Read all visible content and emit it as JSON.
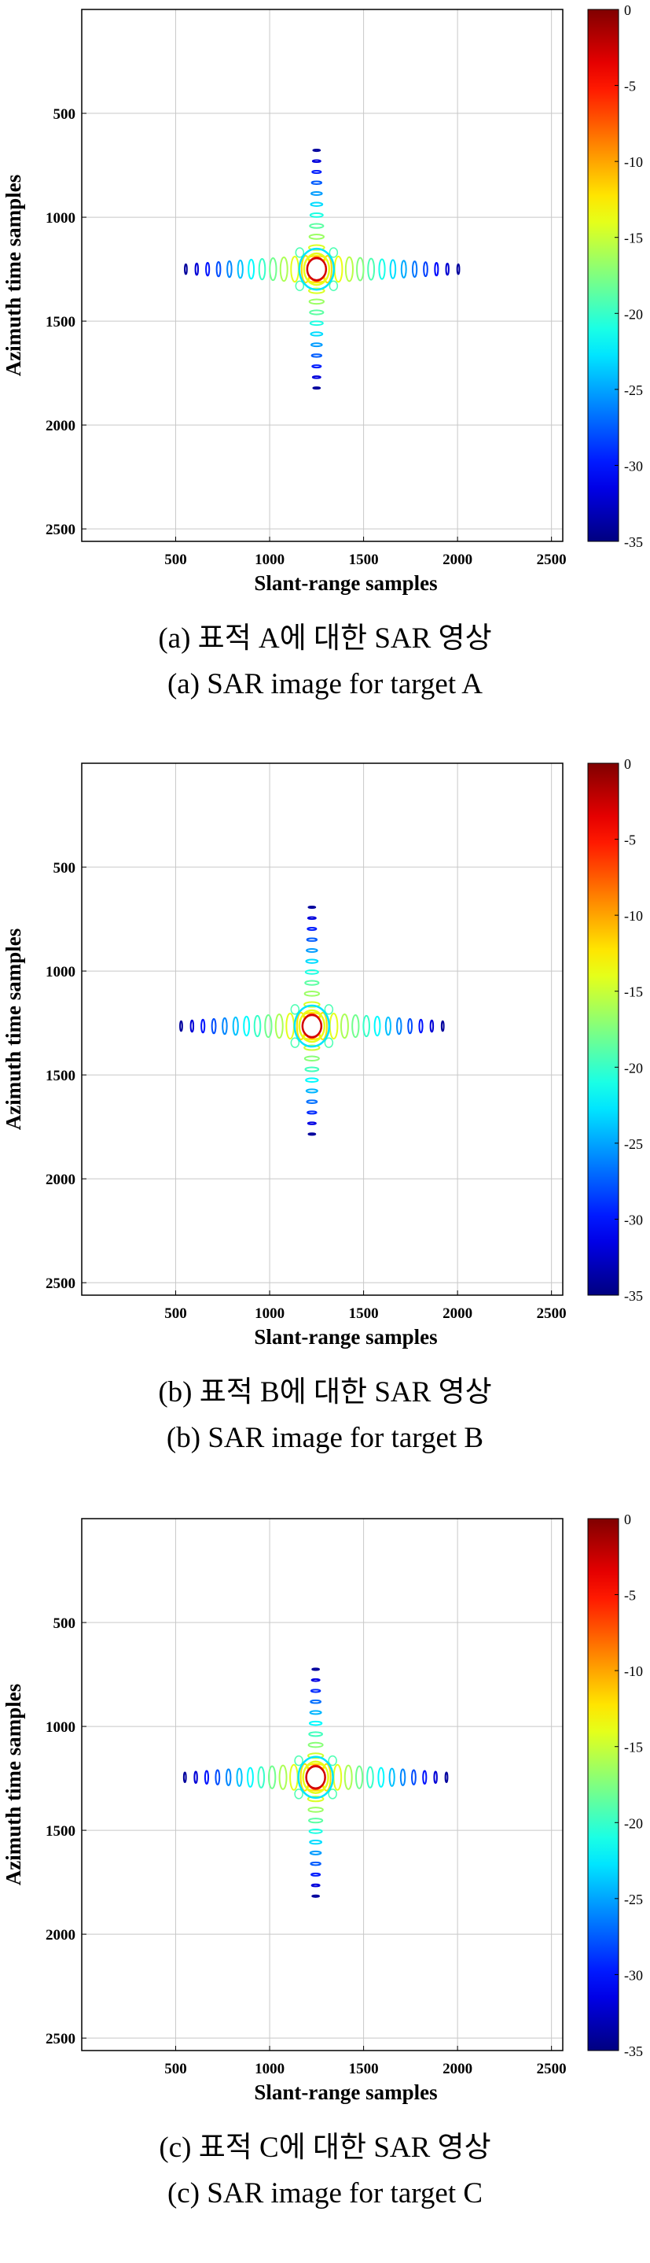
{
  "colorbar": {
    "min": -35,
    "max": 0,
    "ticks": [
      "0",
      "-5",
      "-10",
      "-15",
      "-20",
      "-25",
      "-30",
      "-35"
    ],
    "colormap": "jet"
  },
  "chart_data": [
    {
      "type": "heatmap",
      "xlabel": "Slant-range samples",
      "ylabel": "Azimuth time samples",
      "xlim": [
        0,
        2560
      ],
      "ylim": [
        2560,
        0
      ],
      "xticks": [
        500,
        1000,
        1500,
        2000,
        2500
      ],
      "yticks": [
        500,
        1000,
        1500,
        2000,
        2500
      ],
      "grid": true,
      "target_peak": {
        "x": 1250,
        "y": 1250
      },
      "range_sidelobes_extent": [
        530,
        1980
      ],
      "azimuth_sidelobes_extent": [
        700,
        1810
      ],
      "colorbar_range_db": [
        -35,
        0
      ],
      "caption_kr": "(a)  표적 A에 대한 SAR 영상",
      "caption_en": "(a)  SAR image for target A"
    },
    {
      "type": "heatmap",
      "xlabel": "Slant-range samples",
      "ylabel": "Azimuth time samples",
      "xlim": [
        0,
        2560
      ],
      "ylim": [
        2560,
        0
      ],
      "xticks": [
        500,
        1000,
        1500,
        2000,
        2500
      ],
      "yticks": [
        500,
        1000,
        1500,
        2000,
        2500
      ],
      "grid": true,
      "target_peak": {
        "x": 1225,
        "y": 1265
      },
      "range_sidelobes_extent": [
        505,
        1945
      ],
      "azimuth_sidelobes_extent": [
        700,
        1810
      ],
      "colorbar_range_db": [
        -35,
        0
      ],
      "caption_kr": "(b)  표적 B에 대한 SAR 영상",
      "caption_en": "(b)  SAR image for target B"
    },
    {
      "type": "heatmap",
      "xlabel": "Slant-range samples",
      "ylabel": "Azimuth time samples",
      "xlim": [
        0,
        2560
      ],
      "ylim": [
        2560,
        0
      ],
      "xticks": [
        500,
        1000,
        1500,
        2000,
        2500
      ],
      "yticks": [
        500,
        1000,
        1500,
        2000,
        2500
      ],
      "grid": true,
      "target_peak": {
        "x": 1245,
        "y": 1245
      },
      "range_sidelobes_extent": [
        530,
        1965
      ],
      "azimuth_sidelobes_extent": [
        700,
        1810
      ],
      "colorbar_range_db": [
        -35,
        0
      ],
      "caption_kr": "(c)  표적 C에 대한 SAR 영상",
      "caption_en": "(c)  SAR image for target C"
    }
  ]
}
